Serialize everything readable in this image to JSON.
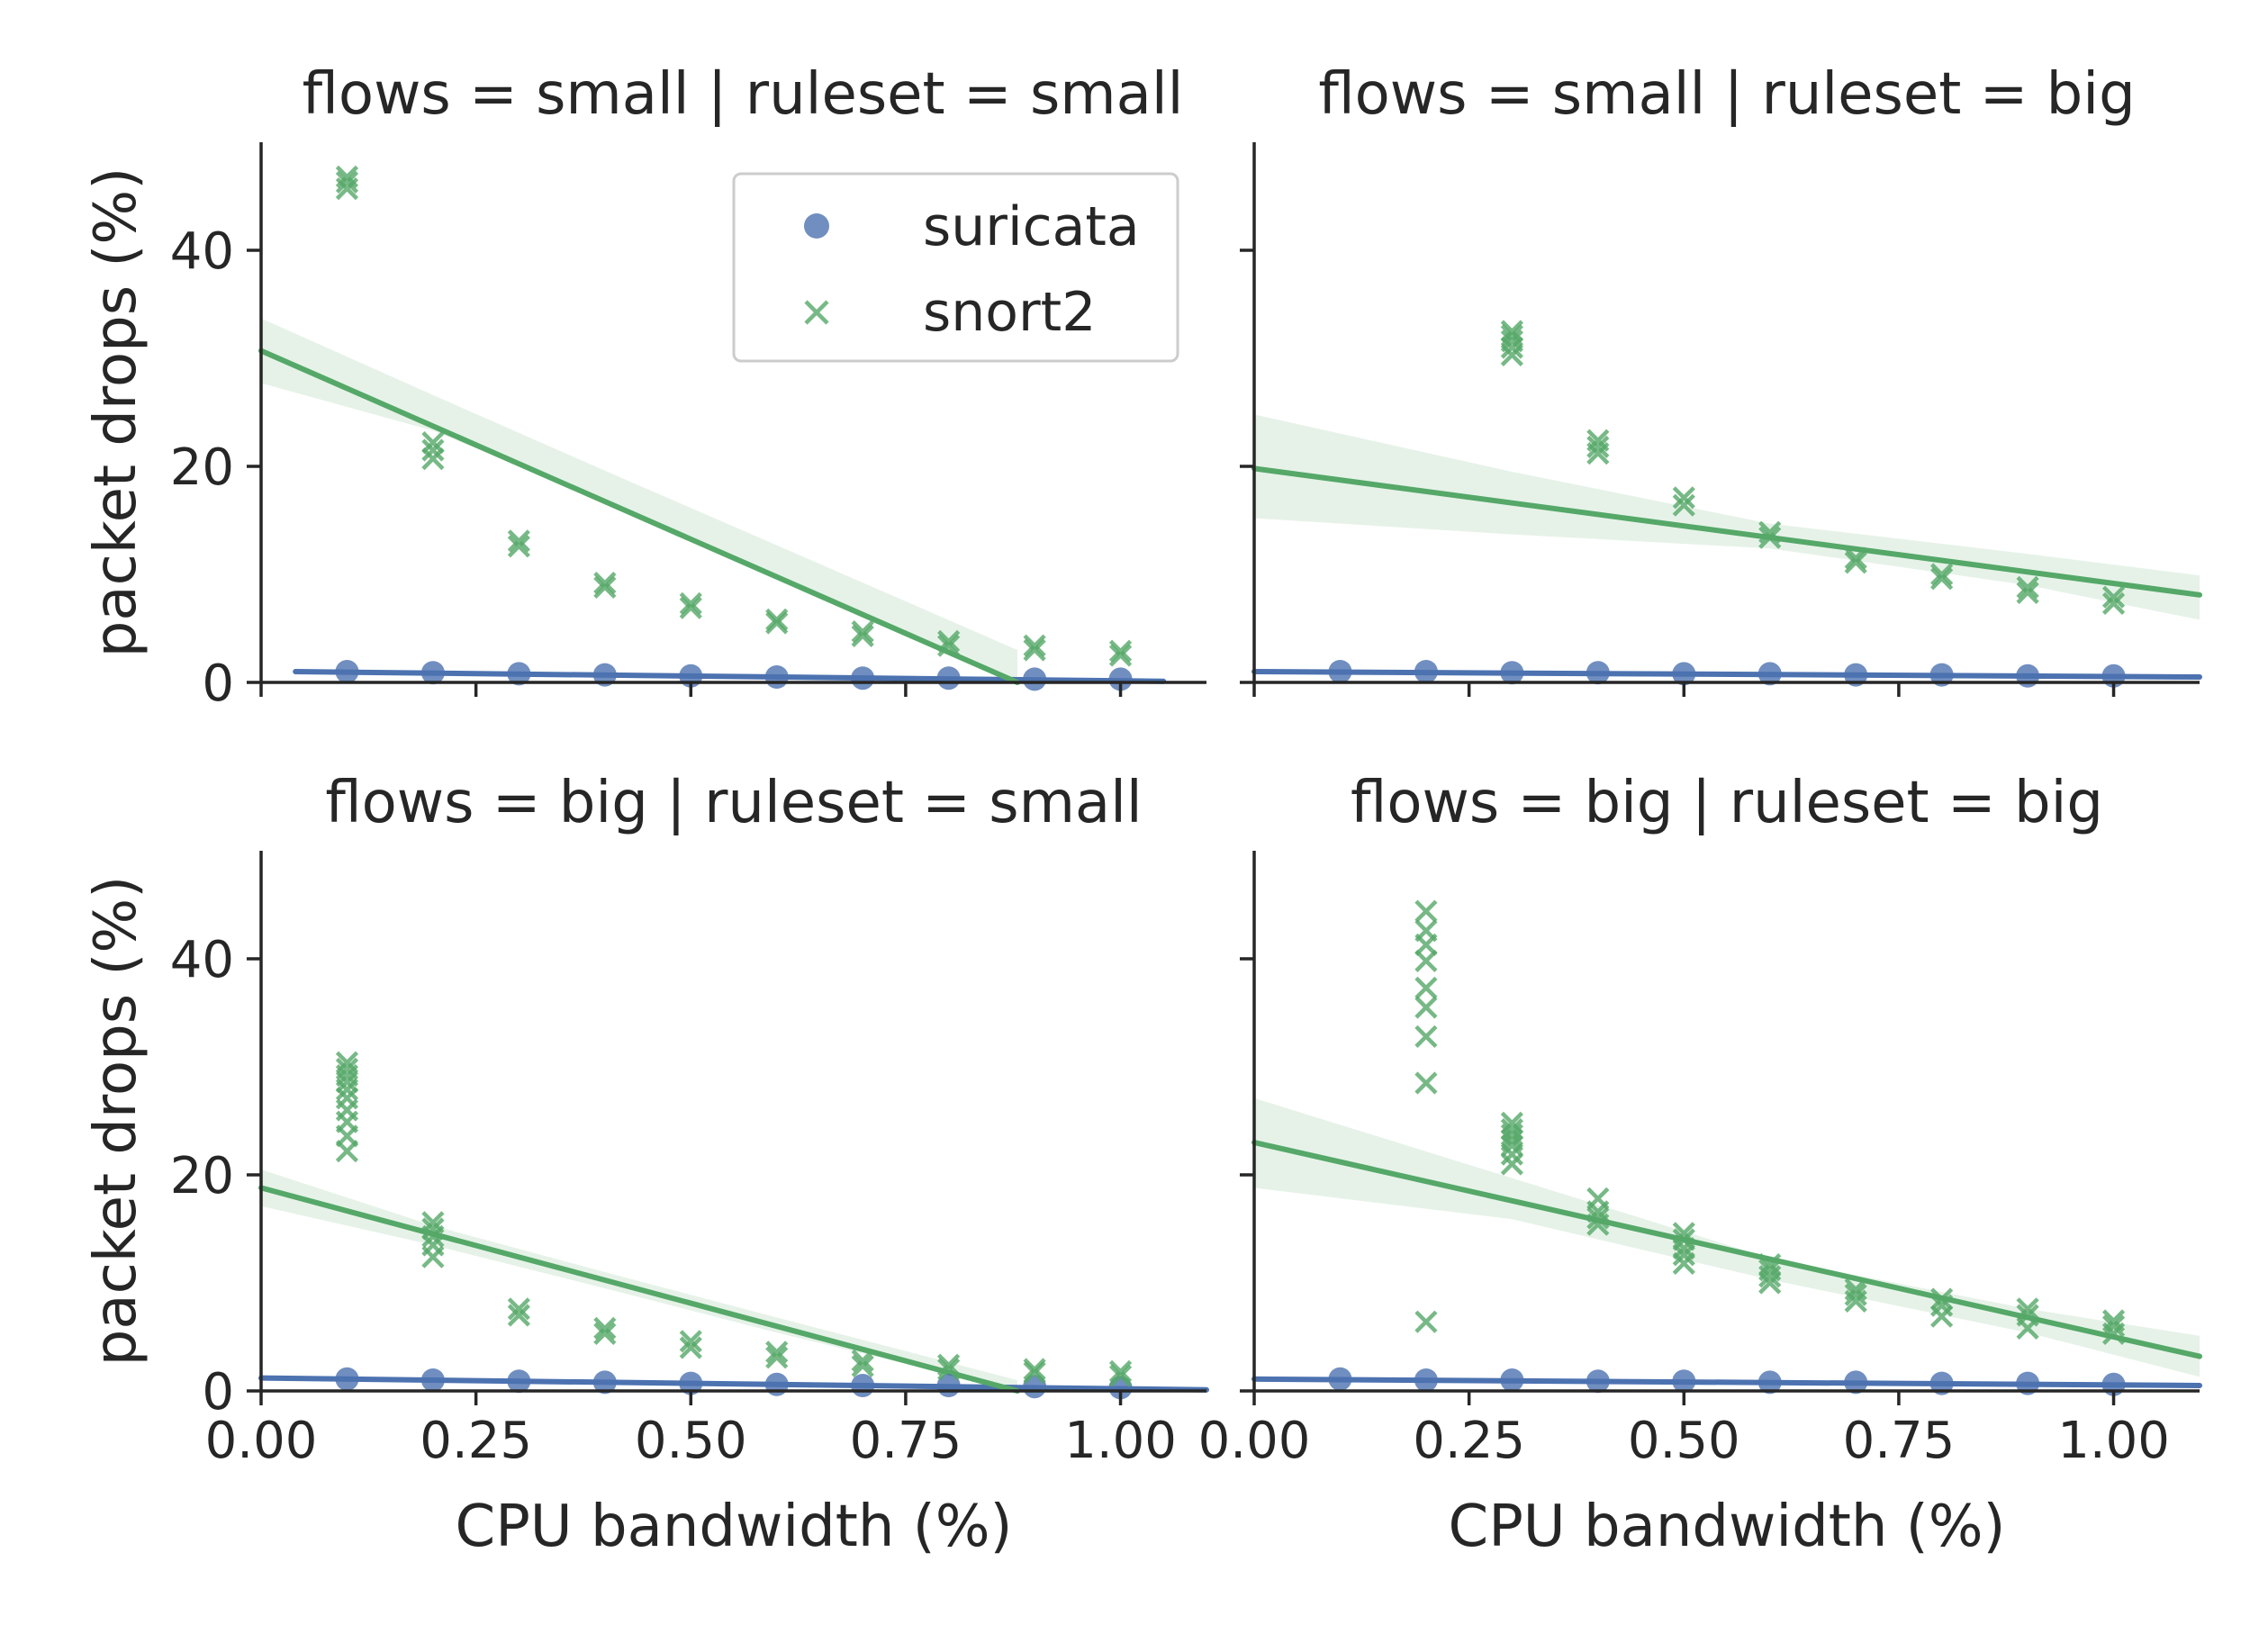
{
  "colors": {
    "suricata": "#4c72b0",
    "snort2": "#55a868",
    "axis": "#262626",
    "legend_frame": "#cccccc"
  },
  "chart_data": {
    "type": "scatter",
    "shared": {
      "xlabel": "CPU bandwidth (%)",
      "ylabel": "packet drops (%)",
      "xlim": [
        0.0,
        1.1
      ],
      "ylim": [
        0,
        50
      ],
      "xticks": [
        0.0,
        0.25,
        0.5,
        0.75,
        1.0
      ],
      "xtick_labels": [
        "0.00",
        "0.25",
        "0.50",
        "0.75",
        "1.00"
      ],
      "yticks": [
        0,
        20,
        40
      ],
      "ytick_labels": [
        "0",
        "20",
        "40"
      ],
      "grid": false,
      "legend": {
        "placement": "upper-right of first panel",
        "entries": [
          {
            "name": "suricata",
            "marker": "circle",
            "color": "#4c72b0"
          },
          {
            "name": "snort2",
            "marker": "x",
            "color": "#55a868"
          }
        ]
      }
    },
    "panels": [
      {
        "title": "flows = small | ruleset = small",
        "series": [
          {
            "name": "suricata",
            "x": [
              0.1,
              0.2,
              0.3,
              0.4,
              0.5,
              0.6,
              0.7,
              0.8,
              0.9,
              1.0
            ],
            "y": [
              1.0,
              0.9,
              0.8,
              0.7,
              0.6,
              0.5,
              0.4,
              0.4,
              0.3,
              0.3
            ],
            "fit": {
              "x": [
                0.04,
                1.05
              ],
              "y": [
                1.0,
                0.1
              ]
            }
          },
          {
            "name": "snort2",
            "x": [
              0.1,
              0.1,
              0.1,
              0.2,
              0.2,
              0.2,
              0.3,
              0.3,
              0.4,
              0.4,
              0.5,
              0.5,
              0.6,
              0.6,
              0.7,
              0.7,
              0.8,
              0.8,
              0.9,
              0.9,
              1.0,
              1.0
            ],
            "y": [
              45.7,
              46.3,
              46.8,
              20.7,
              21.5,
              22.2,
              12.6,
              13.1,
              8.8,
              9.2,
              6.9,
              7.3,
              5.5,
              5.8,
              4.3,
              4.7,
              3.4,
              3.8,
              3.0,
              3.4,
              2.5,
              2.9
            ],
            "fit": {
              "x": [
                0.0,
                0.88
              ],
              "y": [
                30.7,
                0.0
              ]
            },
            "ci": {
              "x": [
                0.0,
                0.2,
                0.4,
                0.6,
                0.88
              ],
              "upper": [
                33.7,
                26.6,
                19.6,
                12.7,
                3.0
              ],
              "lower": [
                27.7,
                23.3,
                16.8,
                9.8,
                0.0
              ]
            }
          }
        ]
      },
      {
        "title": "flows = small | ruleset = big",
        "series": [
          {
            "name": "suricata",
            "x": [
              0.1,
              0.2,
              0.3,
              0.4,
              0.5,
              0.6,
              0.7,
              0.8,
              0.9,
              1.0
            ],
            "y": [
              1.0,
              1.0,
              0.9,
              0.9,
              0.8,
              0.8,
              0.7,
              0.7,
              0.6,
              0.6
            ],
            "fit": {
              "x": [
                0.0,
                1.1
              ],
              "y": [
                1.0,
                0.5
              ]
            }
          },
          {
            "name": "snort2",
            "x": [
              0.3,
              0.3,
              0.3,
              0.3,
              0.3,
              0.4,
              0.4,
              0.4,
              0.5,
              0.5,
              0.6,
              0.6,
              0.7,
              0.7,
              0.8,
              0.8,
              0.9,
              0.9,
              1.0,
              1.0
            ],
            "y": [
              30.3,
              31.0,
              31.6,
              32.1,
              32.5,
              21.2,
              21.8,
              22.4,
              16.4,
              17.1,
              13.4,
              13.9,
              11.1,
              11.5,
              9.6,
              10.0,
              8.3,
              8.8,
              7.3,
              7.9
            ],
            "fit": {
              "x": [
                0.0,
                1.1
              ],
              "y": [
                19.8,
                8.1
              ]
            },
            "ci": {
              "x": [
                0.0,
                0.3,
                0.6,
                0.9,
                1.1
              ],
              "upper": [
                24.8,
                19.5,
                14.7,
                11.9,
                9.9
              ],
              "lower": [
                15.2,
                13.7,
                12.4,
                9.0,
                5.8
              ]
            }
          }
        ]
      },
      {
        "title": "flows = big | ruleset = small",
        "series": [
          {
            "name": "suricata",
            "x": [
              0.1,
              0.2,
              0.3,
              0.4,
              0.5,
              0.6,
              0.7,
              0.8,
              0.9,
              1.0
            ],
            "y": [
              1.1,
              1.0,
              0.9,
              0.8,
              0.7,
              0.6,
              0.5,
              0.5,
              0.4,
              0.3
            ],
            "fit": {
              "x": [
                0.0,
                1.1
              ],
              "y": [
                1.2,
                0.1
              ]
            }
          },
          {
            "name": "snort2",
            "x": [
              0.1,
              0.1,
              0.1,
              0.1,
              0.1,
              0.1,
              0.1,
              0.1,
              0.1,
              0.1,
              0.2,
              0.2,
              0.2,
              0.2,
              0.2,
              0.3,
              0.3,
              0.4,
              0.4,
              0.5,
              0.5,
              0.6,
              0.6,
              0.7,
              0.7,
              0.8,
              0.8,
              0.9,
              0.9,
              1.0,
              1.0
            ],
            "y": [
              22.2,
              23.6,
              24.9,
              26.0,
              27.1,
              27.9,
              28.6,
              29.2,
              29.8,
              30.4,
              12.4,
              13.5,
              14.3,
              15.0,
              15.6,
              7.0,
              7.6,
              5.3,
              5.8,
              4.0,
              4.6,
              3.1,
              3.6,
              2.3,
              2.8,
              2.0,
              2.4,
              1.7,
              2.0,
              1.4,
              1.8
            ],
            "fit": {
              "x": [
                0.0,
                0.88
              ],
              "y": [
                18.8,
                0.0
              ]
            },
            "ci": {
              "x": [
                0.0,
                0.2,
                0.4,
                0.6,
                0.88
              ],
              "upper": [
                20.5,
                15.3,
                11.0,
                6.8,
                1.0
              ],
              "lower": [
                17.1,
                13.5,
                9.5,
                5.4,
                0.0
              ]
            }
          }
        ]
      },
      {
        "title": "flows = big | ruleset = big",
        "series": [
          {
            "name": "suricata",
            "x": [
              0.1,
              0.2,
              0.3,
              0.4,
              0.5,
              0.6,
              0.7,
              0.8,
              0.9,
              1.0
            ],
            "y": [
              1.1,
              1.0,
              1.0,
              0.9,
              0.9,
              0.8,
              0.8,
              0.7,
              0.7,
              0.6
            ],
            "fit": {
              "x": [
                0.0,
                1.1
              ],
              "y": [
                1.1,
                0.5
              ]
            }
          },
          {
            "name": "snort2",
            "x": [
              0.2,
              0.2,
              0.2,
              0.2,
              0.2,
              0.2,
              0.2,
              0.2,
              0.2,
              0.3,
              0.3,
              0.3,
              0.3,
              0.3,
              0.3,
              0.3,
              0.4,
              0.4,
              0.4,
              0.4,
              0.5,
              0.5,
              0.5,
              0.5,
              0.5,
              0.6,
              0.6,
              0.6,
              0.6,
              0.7,
              0.7,
              0.7,
              0.8,
              0.8,
              0.8,
              0.9,
              0.9,
              0.9,
              1.0,
              1.0,
              1.0
            ],
            "y": [
              6.4,
              28.5,
              32.8,
              35.5,
              37.3,
              39.8,
              41.3,
              42.6,
              44.4,
              21.0,
              21.9,
              22.7,
              23.2,
              23.7,
              24.2,
              24.8,
              15.4,
              16.0,
              16.6,
              17.8,
              11.8,
              12.6,
              13.2,
              14.0,
              14.6,
              10.0,
              10.6,
              11.2,
              11.7,
              8.3,
              8.9,
              9.4,
              6.9,
              7.9,
              8.5,
              5.8,
              7.0,
              7.6,
              5.3,
              6.0,
              6.5
            ],
            "fit": {
              "x": [
                0.0,
                1.1
              ],
              "y": [
                23.0,
                3.2
              ]
            },
            "ci": {
              "x": [
                0.0,
                0.3,
                0.6,
                0.9,
                1.1
              ],
              "upper": [
                27.1,
                19.7,
                12.3,
                7.6,
                5.1
              ],
              "lower": [
                18.8,
                15.9,
                10.3,
                5.4,
                1.3
              ]
            }
          }
        ]
      }
    ]
  }
}
